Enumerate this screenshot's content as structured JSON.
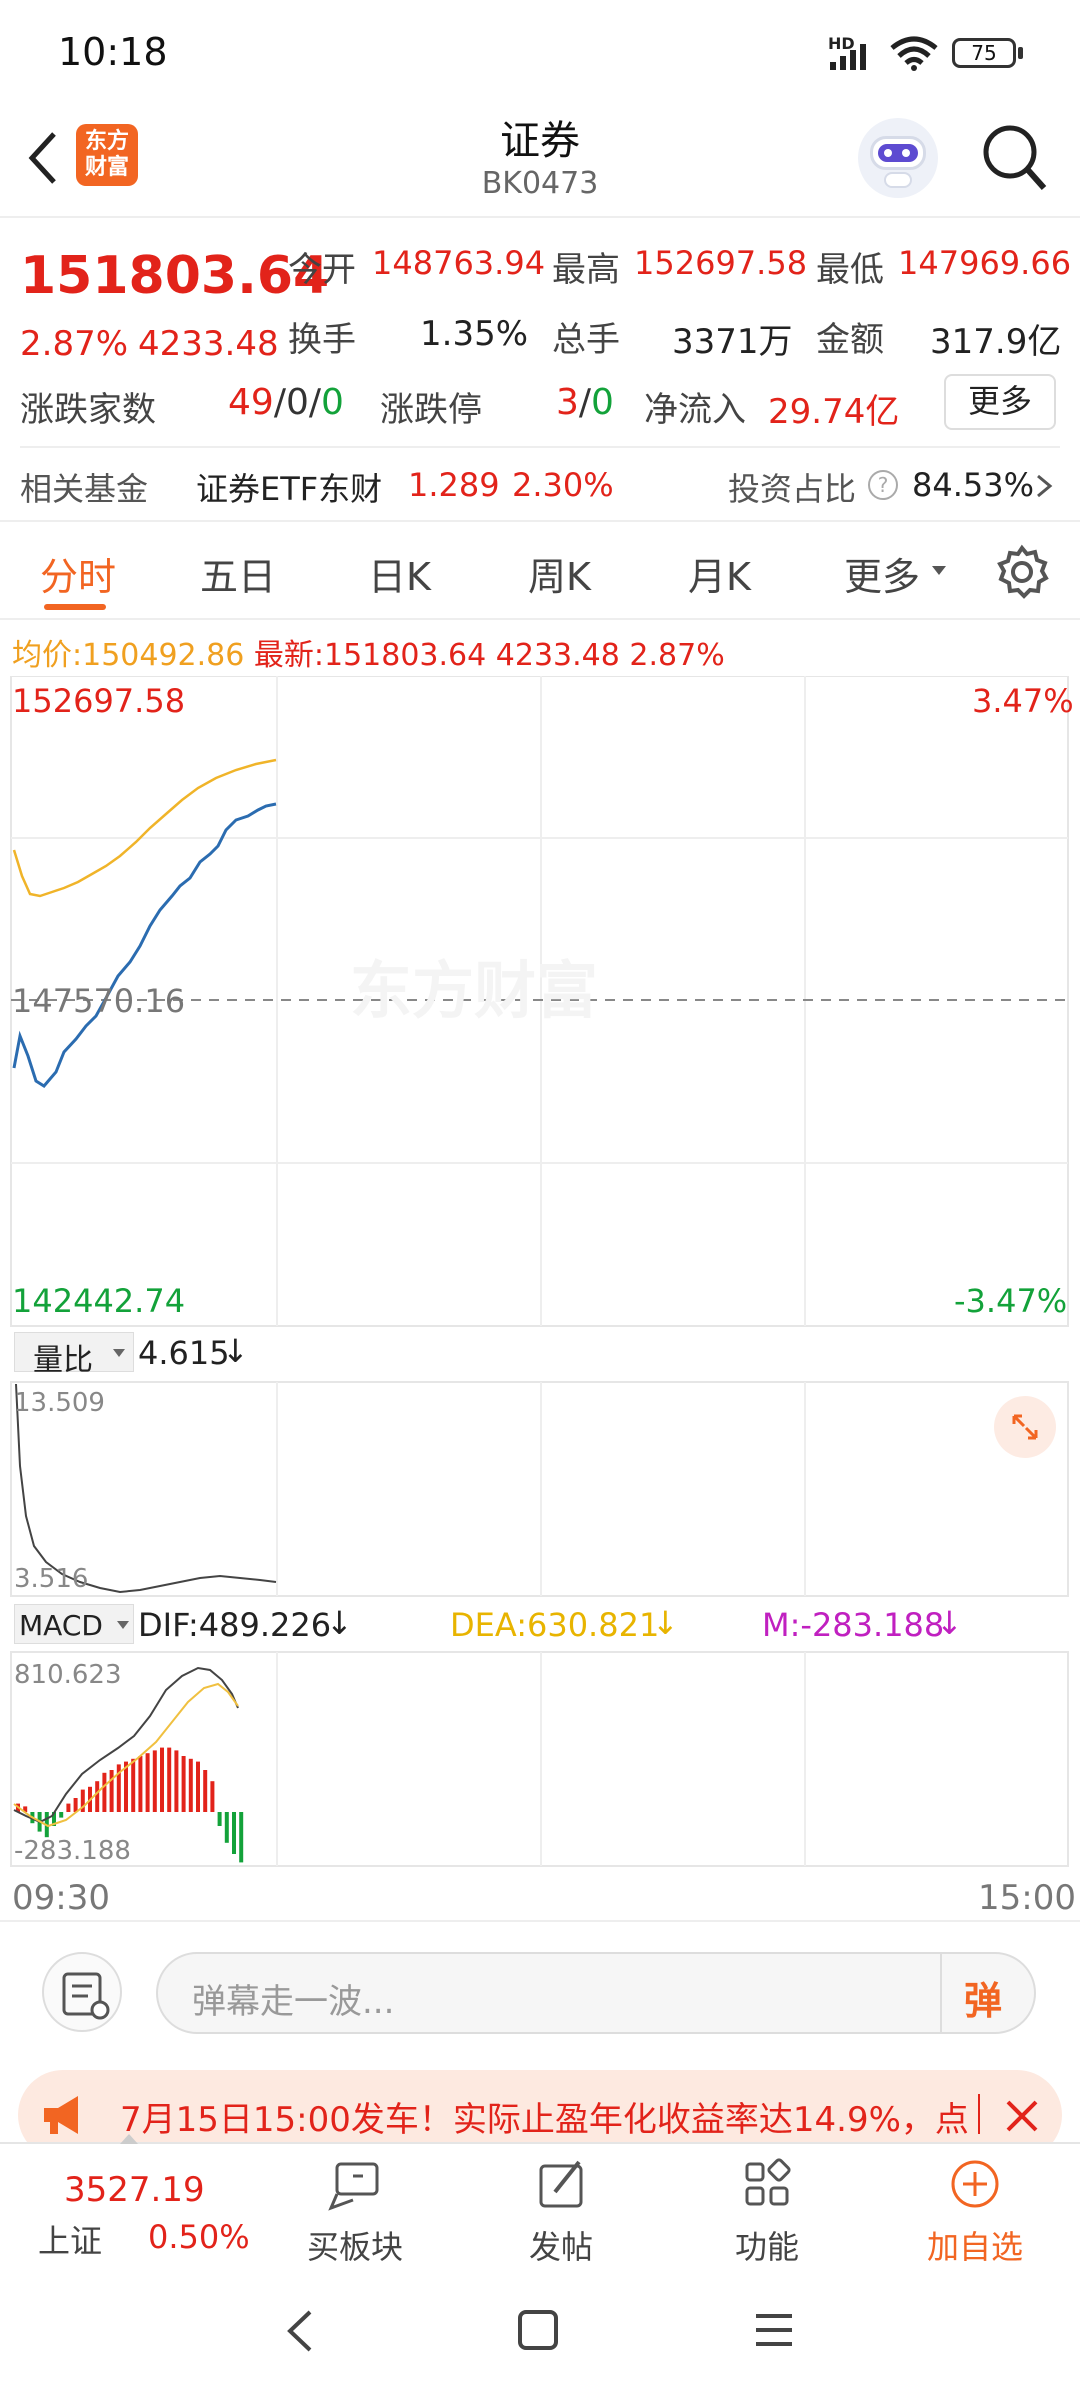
{
  "status": {
    "time": "10:18",
    "network": "HD",
    "battery": "75"
  },
  "header": {
    "title": "证券",
    "code": "BK0473",
    "logo_line1": "东方",
    "logo_line2": "财富"
  },
  "quote": {
    "price": "151803.64",
    "change_pct": "2.87%",
    "change": "4233.48",
    "open_label": "今开",
    "open": "148763.94",
    "high_label": "最高",
    "high": "152697.58",
    "low_label": "最低",
    "low": "147969.66",
    "turnover_label": "换手",
    "turnover": "1.35%",
    "volume_label": "总手",
    "volume": "3371万",
    "amount_label": "金额",
    "amount": "317.9亿",
    "updown_label": "涨跌家数",
    "up": "49",
    "flat": "0",
    "down": "0",
    "limit_label": "涨跌停",
    "limit_up": "3",
    "limit_down": "0",
    "inflow_label": "净流入",
    "inflow": "29.74亿",
    "more": "更多"
  },
  "fund": {
    "label": "相关基金",
    "name": "证券ETF东财",
    "price": "1.289",
    "pct": "2.30%",
    "ratio_label": "投资占比",
    "ratio": "84.53%"
  },
  "tabs": [
    "分时",
    "五日",
    "日K",
    "周K",
    "月K",
    "更多"
  ],
  "chart_info": {
    "avg_label": "均价:",
    "avg": "150492.86",
    "latest_label": "最新:",
    "latest": "151803.64",
    "chg": "4233.48",
    "pct": "2.87%"
  },
  "chart_labels": {
    "top": "152697.58",
    "top_pct": "3.47%",
    "mid": "147570.16",
    "bottom": "142442.74",
    "bottom_pct": "-3.47%",
    "watermark": "东方财富"
  },
  "volume_ratio": {
    "label": "量比",
    "value": "4.615",
    "arrow": "↓",
    "max": "13.509",
    "min": "3.516"
  },
  "macd": {
    "label": "MACD",
    "dif": "DIF:489.226",
    "dif_arrow": "↓",
    "dea": "DEA:630.821",
    "dea_arrow": "↓",
    "m": "M:-283.188",
    "m_arrow": "↓",
    "max": "810.623",
    "min": "-283.188"
  },
  "time_axis": {
    "start": "09:30",
    "end": "15:00"
  },
  "comment": {
    "placeholder": "弹幕走一波...",
    "danmu": "弹"
  },
  "banner": {
    "text": "7月15日15:00发车！实际止盈年化收益率达14.9%，点"
  },
  "bottom": {
    "index_value": "3527.19",
    "index_name": "上证",
    "index_pct": "0.50%",
    "buy_block": "买板块",
    "post": "发帖",
    "function": "功能",
    "add_watch": "加自选"
  },
  "colors": {
    "accent": "#f26522",
    "up": "#e2231a",
    "down": "#13a23a",
    "price_line": "#2b6cb0",
    "avg_line": "#f0b429"
  }
}
